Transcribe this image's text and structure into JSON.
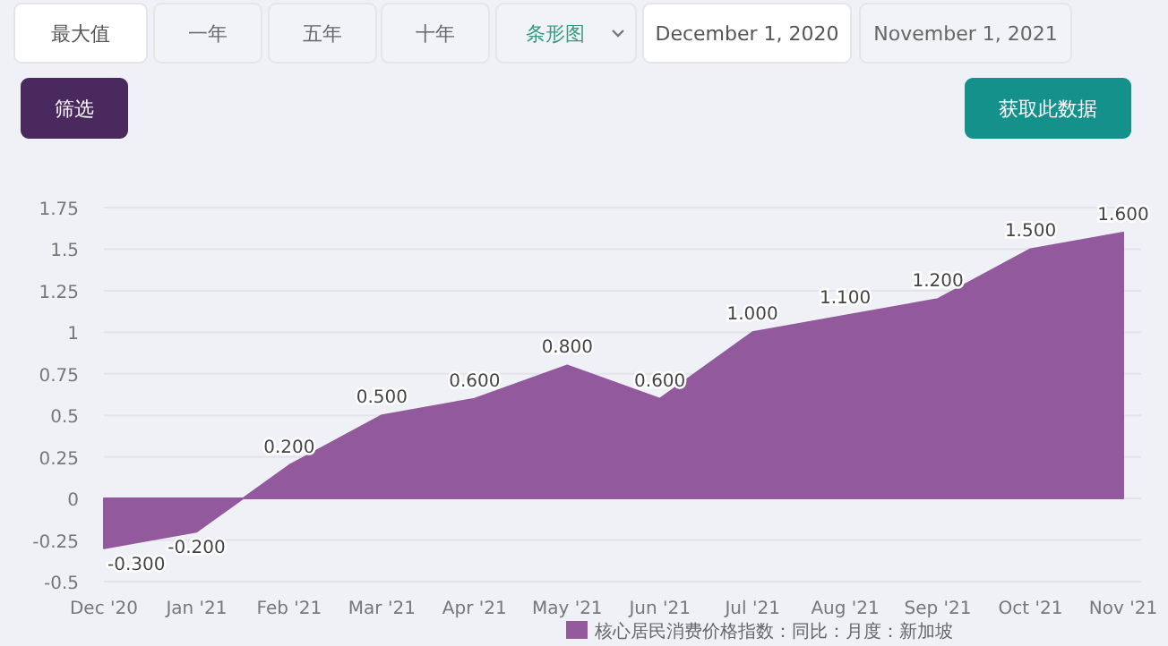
{
  "chart_data": {
    "type": "area",
    "categories": [
      "Dec '20",
      "Jan '21",
      "Feb '21",
      "Mar '21",
      "Apr '21",
      "May '21",
      "Jun '21",
      "Jul '21",
      "Aug '21",
      "Sep '21",
      "Oct '21",
      "Nov '21"
    ],
    "series": [
      {
        "name": "核心居民消费价格指数：同比：月度：新加坡",
        "color": "#925a9c",
        "values": [
          -0.3,
          -0.2,
          0.2,
          0.5,
          0.6,
          0.8,
          0.6,
          1.0,
          1.1,
          1.2,
          1.5,
          1.6
        ],
        "value_labels": [
          "-0.300",
          "-0.200",
          "0.200",
          "0.500",
          "0.600",
          "0.800",
          "0.600",
          "1.000",
          "1.100",
          "1.200",
          "1.500",
          "1.600"
        ]
      }
    ],
    "ylim": [
      -0.5,
      1.75
    ],
    "yticks": [
      -0.5,
      -0.25,
      0,
      0.25,
      0.5,
      0.75,
      1,
      1.25,
      1.5,
      1.75
    ],
    "grid": "y",
    "legend": "bottom",
    "annotations": [
      "最大值",
      "一年",
      "五年",
      "十年",
      "条形图",
      "December 1, 2020",
      "November 1, 2021",
      "筛选",
      "获取此数据"
    ]
  }
}
